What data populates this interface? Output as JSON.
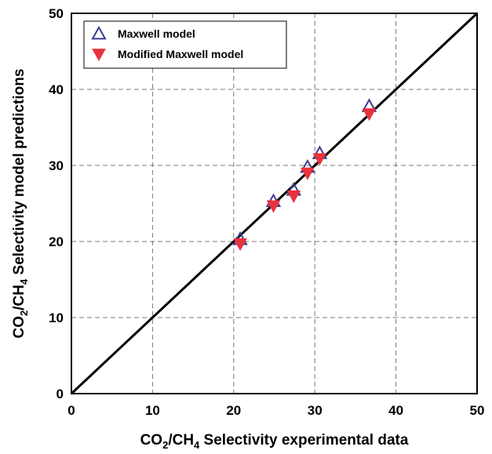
{
  "chart_data": {
    "type": "scatter",
    "title": "",
    "xlabel": {
      "parts": [
        "CO",
        "2",
        "/CH",
        "4",
        " Selectivity experimental data"
      ]
    },
    "ylabel": {
      "parts": [
        "CO",
        "2",
        "/CH",
        "4",
        " Selectivity model predictions"
      ]
    },
    "xlim": [
      0,
      50
    ],
    "ylim": [
      0,
      50
    ],
    "xticks": [
      "0",
      "10",
      "20",
      "30",
      "40",
      "50"
    ],
    "yticks": [
      "0",
      "10",
      "20",
      "30",
      "40",
      "50"
    ],
    "grid": true,
    "legend_position": "top-left",
    "reference_line": {
      "x": [
        0,
        50
      ],
      "y": [
        0,
        50
      ],
      "color": "#000000"
    },
    "series": [
      {
        "name": "Maxwell model",
        "marker": "triangle-up-open",
        "color": "#3a3d8f",
        "points": [
          {
            "x": 20.8,
            "y": 20.3
          },
          {
            "x": 24.9,
            "y": 25.3
          },
          {
            "x": 27.4,
            "y": 26.8
          },
          {
            "x": 29.1,
            "y": 29.8
          },
          {
            "x": 30.6,
            "y": 31.6
          },
          {
            "x": 36.7,
            "y": 37.8
          }
        ]
      },
      {
        "name": "Modified Maxwell model",
        "marker": "triangle-down-filled",
        "color": "#e8323c",
        "points": [
          {
            "x": 20.8,
            "y": 19.7
          },
          {
            "x": 24.9,
            "y": 24.7
          },
          {
            "x": 27.4,
            "y": 26.0
          },
          {
            "x": 29.1,
            "y": 29.0
          },
          {
            "x": 30.6,
            "y": 30.9
          },
          {
            "x": 36.7,
            "y": 36.8
          }
        ]
      }
    ]
  }
}
